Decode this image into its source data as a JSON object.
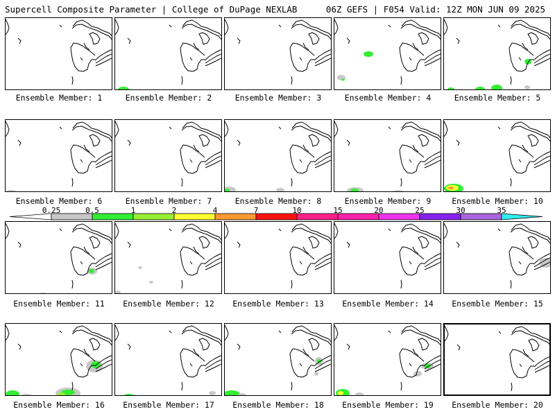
{
  "header": {
    "left_title": "Supercell Composite Parameter | College of DuPage NEXLAB",
    "right_title": "06Z GEFS | F054 Valid: 12Z MON JUN 09 2025"
  },
  "member_label_prefix": "Ensemble Member:",
  "members": [
    {
      "id": 1,
      "label": "Ensemble Member: 1"
    },
    {
      "id": 2,
      "label": "Ensemble Member: 2"
    },
    {
      "id": 3,
      "label": "Ensemble Member: 3"
    },
    {
      "id": 4,
      "label": "Ensemble Member: 4"
    },
    {
      "id": 5,
      "label": "Ensemble Member: 5"
    },
    {
      "id": 6,
      "label": "Ensemble Member: 6"
    },
    {
      "id": 7,
      "label": "Ensemble Member: 7"
    },
    {
      "id": 8,
      "label": "Ensemble Member: 8"
    },
    {
      "id": 9,
      "label": "Ensemble Member: 9"
    },
    {
      "id": 10,
      "label": "Ensemble Member: 10"
    },
    {
      "id": 11,
      "label": "Ensemble Member: 11"
    },
    {
      "id": 12,
      "label": "Ensemble Member: 12"
    },
    {
      "id": 13,
      "label": "Ensemble Member: 13"
    },
    {
      "id": 14,
      "label": "Ensemble Member: 14"
    },
    {
      "id": 15,
      "label": "Ensemble Member: 15"
    },
    {
      "id": 16,
      "label": "Ensemble Member: 16"
    },
    {
      "id": 17,
      "label": "Ensemble Member: 17"
    },
    {
      "id": 18,
      "label": "Ensemble Member: 18"
    },
    {
      "id": 19,
      "label": "Ensemble Member: 19"
    },
    {
      "id": 20,
      "label": "Ensemble Member: 20"
    }
  ],
  "legend": {
    "labels": [
      "0.25",
      "0.5",
      "1",
      "2",
      "4",
      "7",
      "10",
      "15",
      "20",
      "25",
      "30",
      "35"
    ],
    "colors": [
      "#c8c8c8",
      "#33ee33",
      "#99ee33",
      "#ffff33",
      "#ff9933",
      "#ff1111",
      "#ff2288",
      "#ff22aa",
      "#ee33ee",
      "#8822ee",
      "#aa66dd",
      "#33eeee"
    ]
  }
}
